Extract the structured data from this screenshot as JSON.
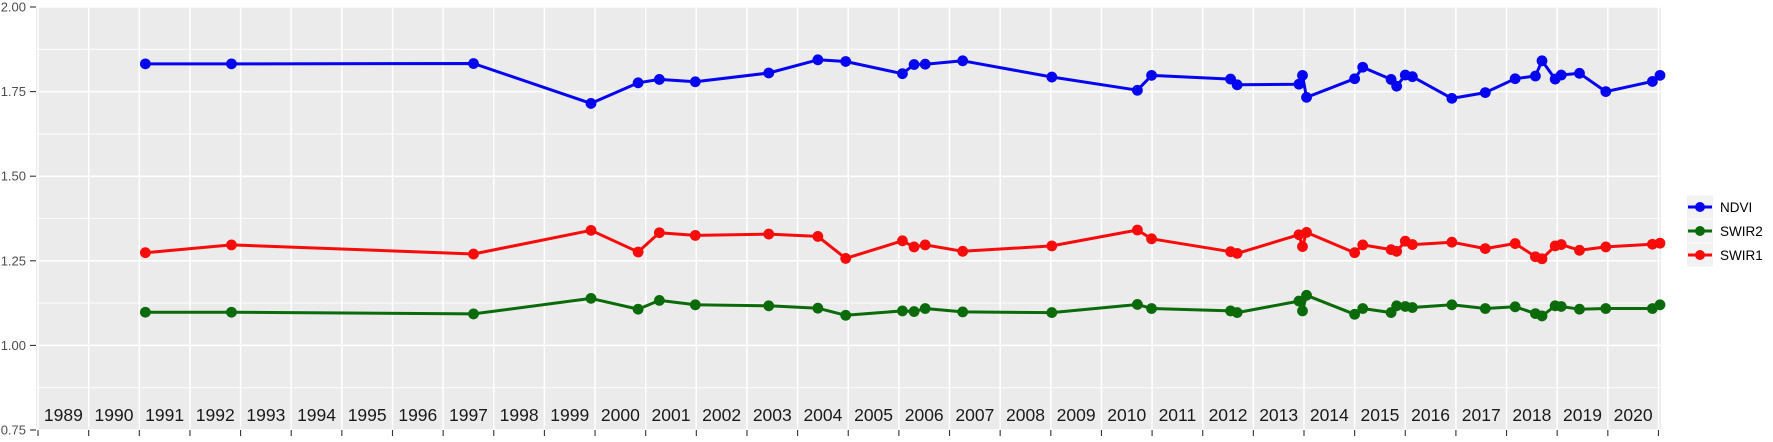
{
  "figure": {
    "background": "#ffffff",
    "panel_fill": "#ebebeb",
    "grid_color": "#ffffff",
    "tick_color": "#333333",
    "y_axis_text_color": "#4d4d4d",
    "x_axis_text_color": "#1a1a1a",
    "legend_key_fill": "#f2f2f2",
    "legend_text_color": "#000000"
  },
  "chart_data": {
    "type": "line",
    "title": "",
    "xlabel": "",
    "ylabel": "",
    "x_range": [
      1988.46,
      2020.55
    ],
    "ylim": [
      0.75,
      2.0
    ],
    "grid": "on",
    "legend_position": "right",
    "y_ticks": [
      {
        "value": 2.0,
        "label": "2.00"
      },
      {
        "value": 1.75,
        "label": "1.75"
      },
      {
        "value": 1.5,
        "label": "1.50"
      },
      {
        "value": 1.25,
        "label": "1.25"
      },
      {
        "value": 1.0,
        "label": "1.00"
      },
      {
        "value": 0.75,
        "label": "0.75"
      }
    ],
    "y_minor_ticks": [
      0.875,
      1.125,
      1.375,
      1.625,
      1.875
    ],
    "x_tick_labels": [
      "1989",
      "1990",
      "1991",
      "1992",
      "1993",
      "1994",
      "1995",
      "1996",
      "1997",
      "1998",
      "1999",
      "2000",
      "2001",
      "2002",
      "2003",
      "2004",
      "2005",
      "2006",
      "2007",
      "2008",
      "2009",
      "2010",
      "2011",
      "2012",
      "2013",
      "2014",
      "2015",
      "2016",
      "2017",
      "2018",
      "2019",
      "2020"
    ],
    "x": [
      1990.62,
      1992.32,
      1997.1,
      1999.42,
      2000.35,
      2000.77,
      2001.48,
      2002.93,
      2003.9,
      2004.45,
      2005.57,
      2005.8,
      2006.02,
      2006.76,
      2008.52,
      2010.21,
      2010.49,
      2012.05,
      2012.18,
      2013.4,
      2013.47,
      2013.55,
      2014.5,
      2014.66,
      2015.22,
      2015.33,
      2015.5,
      2015.64,
      2016.42,
      2017.08,
      2017.67,
      2018.07,
      2018.2,
      2018.46,
      2018.58,
      2018.94,
      2019.46,
      2020.38,
      2020.53
    ],
    "series": [
      {
        "name": "NDVI",
        "color": "#0505f0",
        "values": [
          1.832,
          1.832,
          1.833,
          1.715,
          1.776,
          1.786,
          1.779,
          1.805,
          1.844,
          1.839,
          1.803,
          1.83,
          1.831,
          1.841,
          1.793,
          1.754,
          1.798,
          1.787,
          1.77,
          1.772,
          1.798,
          1.733,
          1.788,
          1.822,
          1.786,
          1.766,
          1.799,
          1.794,
          1.73,
          1.747,
          1.788,
          1.796,
          1.841,
          1.787,
          1.799,
          1.804,
          1.75,
          1.78,
          1.798
        ]
      },
      {
        "name": "SWIR2",
        "color": "#0b6b0b",
        "values": [
          1.098,
          1.098,
          1.093,
          1.139,
          1.107,
          1.133,
          1.12,
          1.117,
          1.11,
          1.089,
          1.102,
          1.1,
          1.109,
          1.099,
          1.097,
          1.121,
          1.109,
          1.102,
          1.097,
          1.131,
          1.102,
          1.148,
          1.092,
          1.109,
          1.097,
          1.117,
          1.115,
          1.112,
          1.12,
          1.109,
          1.114,
          1.094,
          1.087,
          1.117,
          1.115,
          1.107,
          1.109,
          1.109,
          1.12
        ]
      },
      {
        "name": "SWIR1",
        "color": "#f80b0b",
        "values": [
          1.274,
          1.297,
          1.27,
          1.34,
          1.276,
          1.333,
          1.325,
          1.329,
          1.322,
          1.257,
          1.309,
          1.291,
          1.297,
          1.278,
          1.294,
          1.341,
          1.315,
          1.277,
          1.272,
          1.327,
          1.292,
          1.334,
          1.274,
          1.297,
          1.283,
          1.278,
          1.308,
          1.298,
          1.305,
          1.286,
          1.301,
          1.262,
          1.256,
          1.294,
          1.298,
          1.281,
          1.291,
          1.299,
          1.302
        ]
      }
    ],
    "legend_items": [
      "NDVI",
      "SWIR2",
      "SWIR1"
    ]
  }
}
